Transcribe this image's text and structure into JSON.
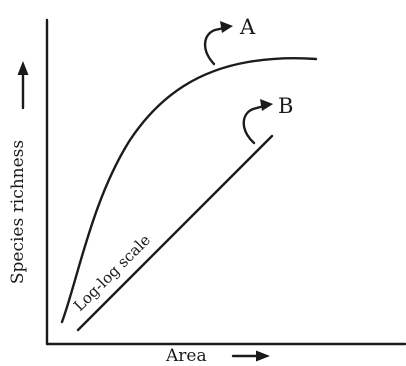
{
  "axes": {
    "y_label": "Species richness",
    "x_label": "Area"
  },
  "curves": {
    "a_label": "A",
    "b_label": "B",
    "b_annotation": "Log-log scale"
  }
}
